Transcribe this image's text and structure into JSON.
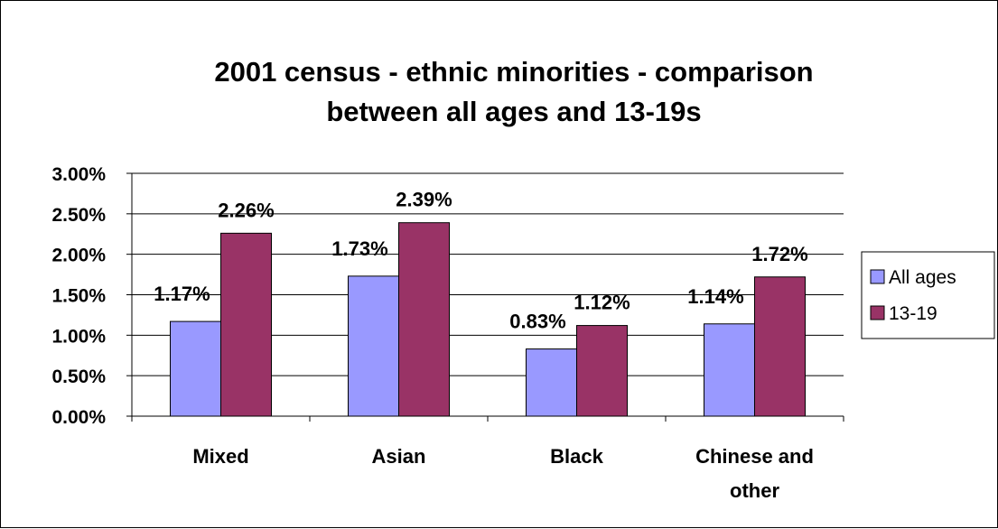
{
  "chart_data": {
    "type": "bar",
    "title_lines": [
      "2001 census - ethnic minorities - comparison",
      "between all ages and 13-19s"
    ],
    "categories": [
      [
        "Mixed"
      ],
      [
        "Asian"
      ],
      [
        "Black"
      ],
      [
        "Chinese and",
        "other"
      ]
    ],
    "series": [
      {
        "name": "All ages",
        "values": [
          1.17,
          1.73,
          0.83,
          1.14
        ],
        "labels": [
          "1.17%",
          "1.73%",
          "0.83%",
          "1.14%"
        ],
        "color": "#9999ff"
      },
      {
        "name": "13-19",
        "values": [
          2.26,
          2.39,
          1.12,
          1.72
        ],
        "labels": [
          "2.26%",
          "2.39%",
          "1.12%",
          "1.72%"
        ],
        "color": "#993366"
      }
    ],
    "y_ticks": [
      {
        "value": 0,
        "label": "0.00%"
      },
      {
        "value": 0.5,
        "label": "0.50%"
      },
      {
        "value": 1,
        "label": "1.00%"
      },
      {
        "value": 1.5,
        "label": "1.50%"
      },
      {
        "value": 2,
        "label": "2.00%"
      },
      {
        "value": 2.5,
        "label": "2.50%"
      },
      {
        "value": 3,
        "label": "3.00%"
      }
    ],
    "ylim": [
      0,
      3
    ],
    "grid": true,
    "legend_position": "right"
  }
}
